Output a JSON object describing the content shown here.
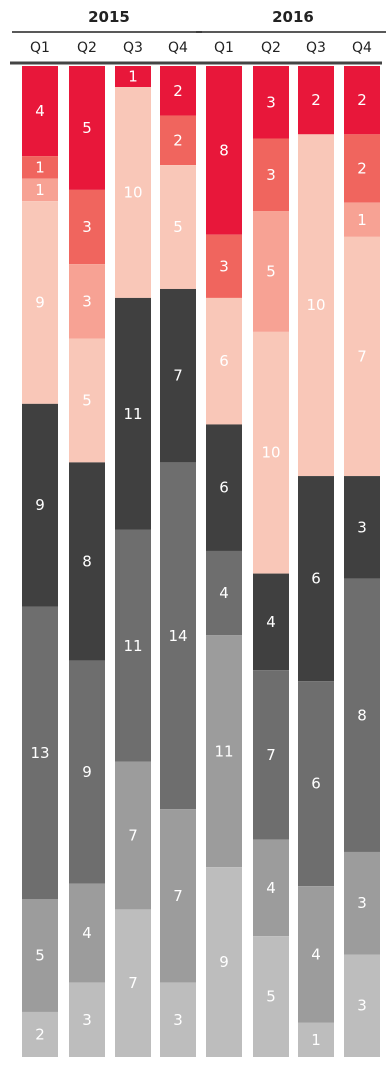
{
  "chart_data": {
    "type": "bar",
    "stacked": true,
    "normalized": true,
    "years": [
      "2015",
      "2016"
    ],
    "categories": [
      "Q1",
      "Q2",
      "Q3",
      "Q4",
      "Q1",
      "Q2",
      "Q3",
      "Q4"
    ],
    "colors": [
      "#e8173a",
      "#f0655e",
      "#f7a294",
      "#f9c7b8",
      "#404040",
      "#6e6e6e",
      "#9c9c9c",
      "#bdbdbd"
    ],
    "label_colors": [
      "#ffffff",
      "#ffffff",
      "#ffffff",
      "#ffffff",
      "#ffffff",
      "#ffffff",
      "#ffffff",
      "#ffffff"
    ],
    "series": [
      {
        "values": [
          4,
          5,
          1,
          2,
          8,
          3,
          2,
          2
        ]
      },
      {
        "values": [
          1,
          3,
          0,
          2,
          3,
          3,
          0,
          2
        ]
      },
      {
        "values": [
          1,
          3,
          0,
          0,
          0,
          5,
          0,
          1
        ]
      },
      {
        "values": [
          9,
          5,
          10,
          5,
          6,
          10,
          10,
          7
        ]
      },
      {
        "values": [
          9,
          8,
          11,
          7,
          6,
          4,
          6,
          3
        ]
      },
      {
        "values": [
          13,
          9,
          11,
          14,
          4,
          7,
          6,
          8
        ]
      },
      {
        "values": [
          5,
          4,
          7,
          7,
          11,
          4,
          4,
          3
        ]
      },
      {
        "values": [
          2,
          3,
          7,
          3,
          9,
          5,
          1,
          3
        ]
      }
    ]
  }
}
